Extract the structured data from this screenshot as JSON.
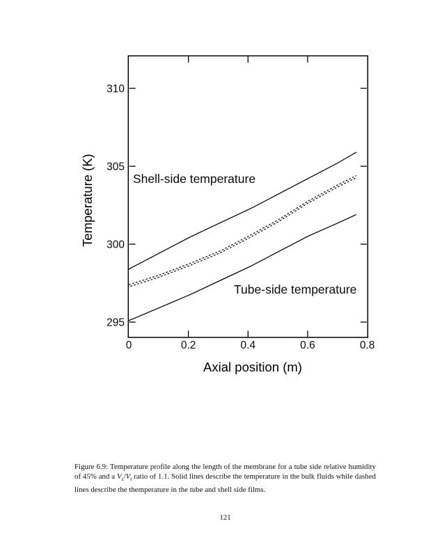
{
  "page": {
    "number": "121"
  },
  "chart_data": {
    "type": "line",
    "title": "",
    "xlabel": "Axial position (m)",
    "ylabel": "Temperature (K)",
    "xlim": [
      0,
      0.8
    ],
    "ylim": [
      294,
      312.1
    ],
    "grid": false,
    "legend": "none (in-plot text annotations)",
    "xticks": [
      0,
      0.2,
      0.4,
      0.6,
      0.8
    ],
    "xtick_labels": [
      "0",
      "0.2",
      "0.4",
      "0.6",
      "0.8"
    ],
    "yticks": [
      295,
      300,
      305,
      310
    ],
    "ytick_labels": [
      "295",
      "300",
      "305",
      "310"
    ],
    "annotations": [
      "Shell-side temperature",
      "Tube-side temperature"
    ],
    "line_color": "#000000",
    "x": [
      0,
      0.1,
      0.21,
      0.31,
      0.41,
      0.5,
      0.6,
      0.7,
      0.763
    ],
    "series": [
      {
        "name": "Shell-side bulk temperature",
        "style": "solid",
        "values": [
          298.4,
          299.4,
          300.5,
          301.4,
          302.3,
          303.2,
          304.2,
          305.2,
          305.9
        ]
      },
      {
        "name": "Shell-side film temperature",
        "style": "dashed",
        "values": [
          297.4,
          298.0,
          298.8,
          299.6,
          300.6,
          301.55,
          302.75,
          303.8,
          304.4
        ]
      },
      {
        "name": "Tube-side film temperature",
        "style": "dashed",
        "values": [
          297.27,
          297.87,
          298.67,
          299.47,
          300.47,
          301.42,
          302.62,
          303.67,
          304.27
        ]
      },
      {
        "name": "Tube-side bulk temperature",
        "style": "solid",
        "values": [
          295.1,
          295.9,
          296.8,
          297.7,
          298.6,
          299.5,
          300.5,
          301.35,
          301.9
        ]
      }
    ]
  },
  "caption": {
    "part1": "Figure 6.9: Temperature profile along the length of the membrane for a tube side relative humidity of 45% and a ",
    "v_s": "V",
    "sub_s": "s",
    "slash": "/",
    "v_t": "V",
    "sub_t": "t",
    "part2": " ratio of 1.1. Solid lines describe the temperature in the bulk fluids while dashed lines describe the themperature in the tube and shell side films."
  }
}
